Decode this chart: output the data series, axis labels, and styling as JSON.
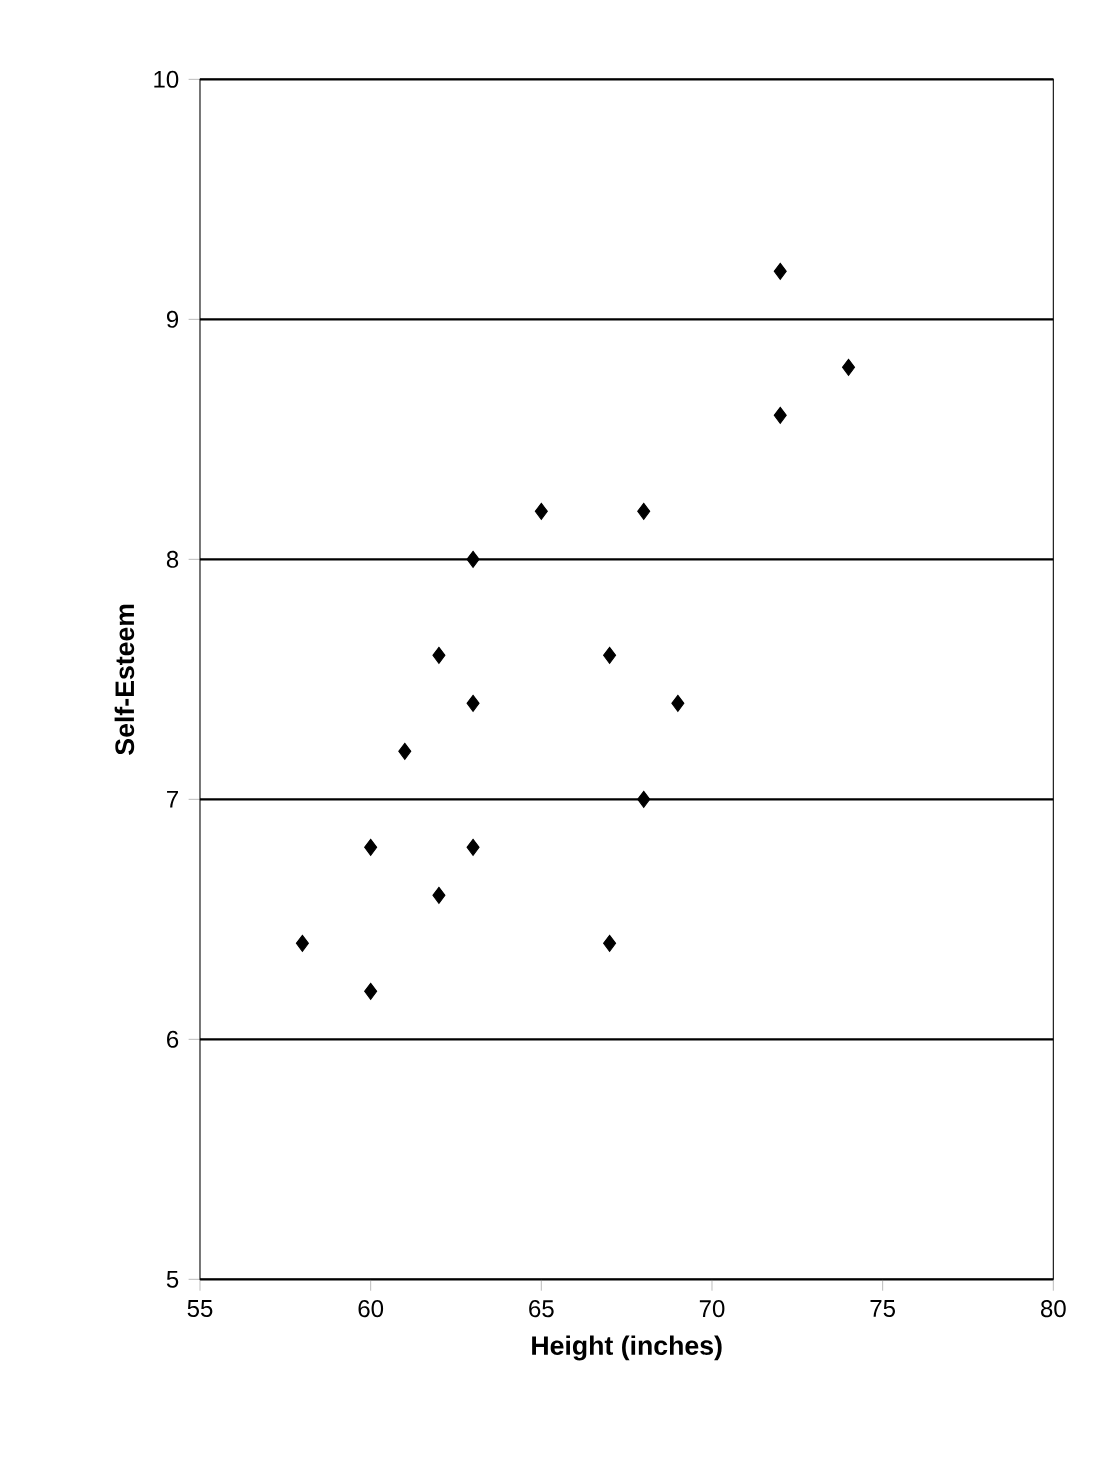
{
  "chart_data": {
    "type": "scatter",
    "xlabel": "Height (inches)",
    "ylabel": "Self-Esteem",
    "x": [
      58,
      60,
      60,
      61,
      62,
      62,
      63,
      63,
      63,
      65,
      67,
      67,
      68,
      68,
      69,
      72,
      72,
      74
    ],
    "values": [
      6.4,
      6.2,
      6.8,
      7.2,
      6.6,
      7.6,
      6.8,
      7.4,
      8.0,
      8.2,
      6.4,
      7.6,
      7.0,
      8.2,
      7.4,
      8.6,
      9.2,
      8.8
    ],
    "color": "#000000",
    "marker": "diamond",
    "grid": "y",
    "xlim": [
      55,
      80
    ],
    "ylim": [
      5,
      10
    ],
    "xticks": [
      55,
      60,
      65,
      70,
      75,
      80
    ],
    "yticks": [
      5,
      6,
      7,
      8,
      9,
      10
    ]
  }
}
